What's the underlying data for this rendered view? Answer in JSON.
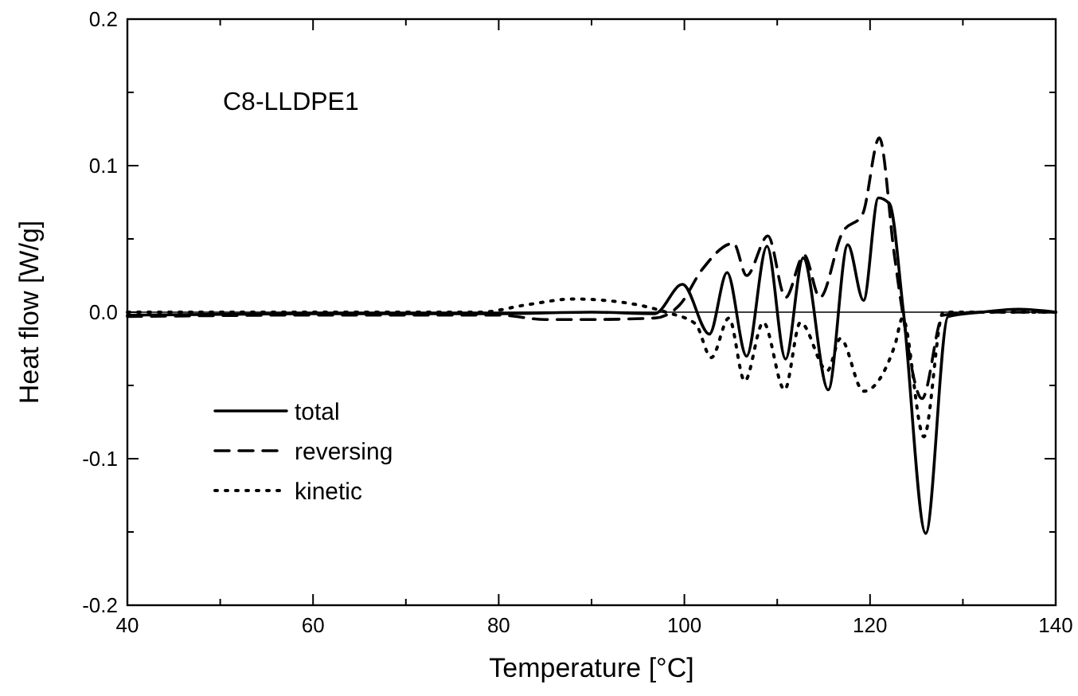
{
  "chart_data": {
    "type": "line",
    "xlabel": "Temperature [°C]",
    "ylabel": "Heat flow [W/g]",
    "annotations": [
      "C8-LLDPE1"
    ],
    "xlim": [
      40,
      140
    ],
    "xticks": [
      40,
      {
        "value": 50,
        "label": null
      },
      60,
      {
        "value": 70,
        "label": null
      },
      80,
      {
        "value": 90,
        "label": null
      },
      100,
      {
        "value": 110,
        "label": null
      },
      120,
      {
        "value": 130,
        "label": null
      },
      140
    ],
    "ylim": [
      -0.2,
      0.2
    ],
    "yticks": [
      -0.2,
      {
        "value": -0.15,
        "label": null
      },
      -0.1,
      {
        "value": -0.05,
        "label": null
      },
      {
        "value": 0,
        "label": "0.0"
      },
      {
        "value": 0.05,
        "label": null
      },
      0.1,
      {
        "value": 0.15,
        "label": null
      },
      0.2
    ],
    "ref_lines": [
      {
        "axis": "y",
        "value": 0,
        "color": "#000000"
      }
    ],
    "legend": "bottom left",
    "grid": false,
    "series": [
      {
        "name": "total",
        "color": "#000000",
        "line_style": "solid",
        "x": [
          40,
          60,
          80,
          90,
          96.8,
          99.8,
          102.7,
          104.6,
          106.7,
          108.9,
          110.9,
          112.8,
          115.5,
          117.6,
          119.3,
          120.9,
          122.1,
          123.6,
          126.0,
          128.4,
          132,
          136,
          140
        ],
        "values": [
          -0.002,
          -0.001,
          -0.001,
          0,
          -0.001,
          0.019,
          -0.015,
          0.027,
          -0.03,
          0.045,
          -0.032,
          0.037,
          -0.053,
          0.046,
          0.008,
          0.078,
          0.074,
          0,
          -0.151,
          -0.003,
          0,
          0.002,
          0
        ]
      },
      {
        "name": "reversing",
        "color": "#000000",
        "line_style": "dashed",
        "x": [
          40,
          60,
          80,
          85,
          90,
          96.8,
          99.5,
          101.9,
          105.3,
          106.7,
          109.0,
          110.9,
          112.9,
          114.6,
          117.0,
          119.2,
          121.0,
          122.6,
          123.5,
          125.6,
          127.9,
          132,
          140
        ],
        "values": [
          -0.003,
          -0.002,
          -0.002,
          -0.005,
          -0.005,
          -0.004,
          0.005,
          0.029,
          0.047,
          0.025,
          0.052,
          0.01,
          0.039,
          0.01,
          0.054,
          0.067,
          0.119,
          0.04,
          0,
          -0.059,
          -0.002,
          0,
          0
        ]
      },
      {
        "name": "kinetic",
        "color": "#000000",
        "line_style": "dotted",
        "x": [
          40,
          60,
          78,
          83,
          88,
          93,
          98,
          101.2,
          102.9,
          104.8,
          106.5,
          108.5,
          110.8,
          112.5,
          115.4,
          116.8,
          119.3,
          122.7,
          123.5,
          125.8,
          127.9,
          132,
          140
        ],
        "values": [
          0,
          0,
          0,
          0.005,
          0.009,
          0.007,
          0,
          -0.008,
          -0.031,
          -0.004,
          -0.047,
          -0.007,
          -0.053,
          -0.007,
          -0.04,
          -0.018,
          -0.054,
          -0.022,
          -0.004,
          -0.085,
          0,
          0,
          0
        ]
      }
    ]
  }
}
